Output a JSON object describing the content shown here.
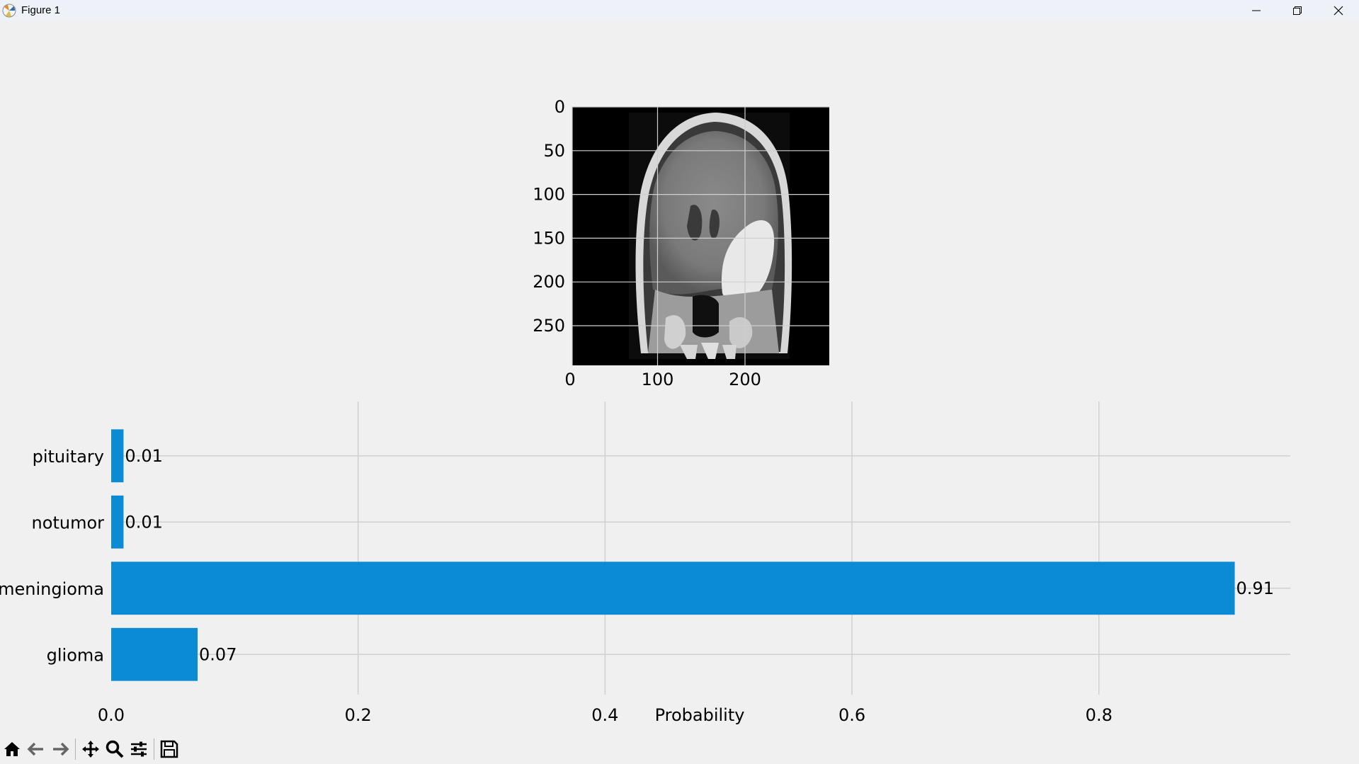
{
  "window": {
    "title": "Figure 1",
    "controls": [
      "minimize-icon",
      "restore-icon",
      "close-icon"
    ]
  },
  "image_panel": {
    "y_ticks": [
      "0",
      "50",
      "100",
      "150",
      "200",
      "250"
    ],
    "x_ticks": [
      "0",
      "100",
      "200"
    ],
    "content": "brain MRI scan (coronal view)"
  },
  "chart_data": {
    "type": "bar",
    "orientation": "horizontal",
    "categories": [
      "glioma",
      "meningioma",
      "notumor",
      "pituitary"
    ],
    "values": [
      0.07,
      0.91,
      0.01,
      0.01
    ],
    "data_labels": [
      "0.07",
      "0.91",
      "0.01",
      "0.01"
    ],
    "xlabel": "Probability",
    "ylabel": "",
    "title": "",
    "xlim": [
      0,
      0.955
    ],
    "x_ticks": [
      0.0,
      0.2,
      0.4,
      0.6,
      0.8
    ],
    "x_tick_labels": [
      "0.0",
      "0.2",
      "0.4",
      "0.6",
      "0.8"
    ],
    "grid": true,
    "bar_color": "#0a8bd4"
  },
  "toolbar": {
    "buttons": [
      "home-icon",
      "back-icon",
      "forward-icon",
      "pan-icon",
      "zoom-icon",
      "configure-icon",
      "save-icon"
    ]
  }
}
